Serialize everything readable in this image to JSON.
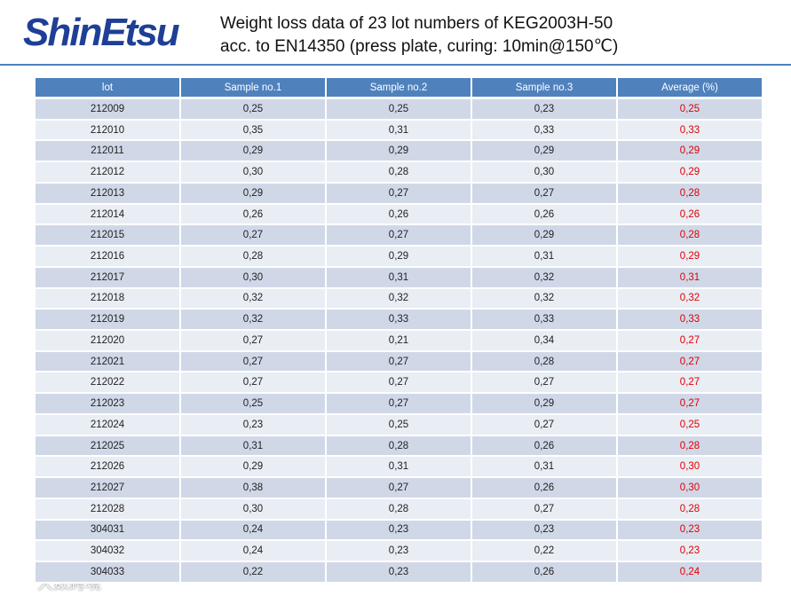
{
  "header": {
    "logo": "ShinEtsu",
    "title_lines": [
      "Weight loss data of 23 lot numbers of KEG2003H-50",
      "acc. to EN14350 (press plate, curing: 10min@150℃)"
    ]
  },
  "table": {
    "columns": [
      "lot",
      "Sample no.1",
      "Sample no.2",
      "Sample no.3",
      "Average (%)"
    ],
    "rows": [
      [
        "212009",
        "0,25",
        "0,25",
        "0,23",
        "0,25"
      ],
      [
        "212010",
        "0,35",
        "0,31",
        "0,33",
        "0,33"
      ],
      [
        "212011",
        "0,29",
        "0,29",
        "0,29",
        "0,29"
      ],
      [
        "212012",
        "0,30",
        "0,28",
        "0,30",
        "0,29"
      ],
      [
        "212013",
        "0,29",
        "0,27",
        "0,27",
        "0,28"
      ],
      [
        "212014",
        "0,26",
        "0,26",
        "0,26",
        "0,26"
      ],
      [
        "212015",
        "0,27",
        "0,27",
        "0,29",
        "0,28"
      ],
      [
        "212016",
        "0,28",
        "0,29",
        "0,31",
        "0,29"
      ],
      [
        "212017",
        "0,30",
        "0,31",
        "0,32",
        "0,31"
      ],
      [
        "212018",
        "0,32",
        "0,32",
        "0,32",
        "0,32"
      ],
      [
        "212019",
        "0,32",
        "0,33",
        "0,33",
        "0,33"
      ],
      [
        "212020",
        "0,27",
        "0,21",
        "0,34",
        "0,27"
      ],
      [
        "212021",
        "0,27",
        "0,27",
        "0,28",
        "0,27"
      ],
      [
        "212022",
        "0,27",
        "0,27",
        "0,27",
        "0,27"
      ],
      [
        "212023",
        "0,25",
        "0,27",
        "0,29",
        "0,27"
      ],
      [
        "212024",
        "0,23",
        "0,25",
        "0,27",
        "0,25"
      ],
      [
        "212025",
        "0,31",
        "0,28",
        "0,26",
        "0,28"
      ],
      [
        "212026",
        "0,29",
        "0,31",
        "0,31",
        "0,30"
      ],
      [
        "212027",
        "0,38",
        "0,27",
        "0,26",
        "0,30"
      ],
      [
        "212028",
        "0,30",
        "0,28",
        "0,27",
        "0,28"
      ],
      [
        "304031",
        "0,24",
        "0,23",
        "0,23",
        "0,23"
      ],
      [
        "304032",
        "0,24",
        "0,23",
        "0,22",
        "0,23"
      ],
      [
        "304033",
        "0,22",
        "0,23",
        "0,26",
        "0,24"
      ]
    ]
  },
  "watermark": "大数跨境"
}
